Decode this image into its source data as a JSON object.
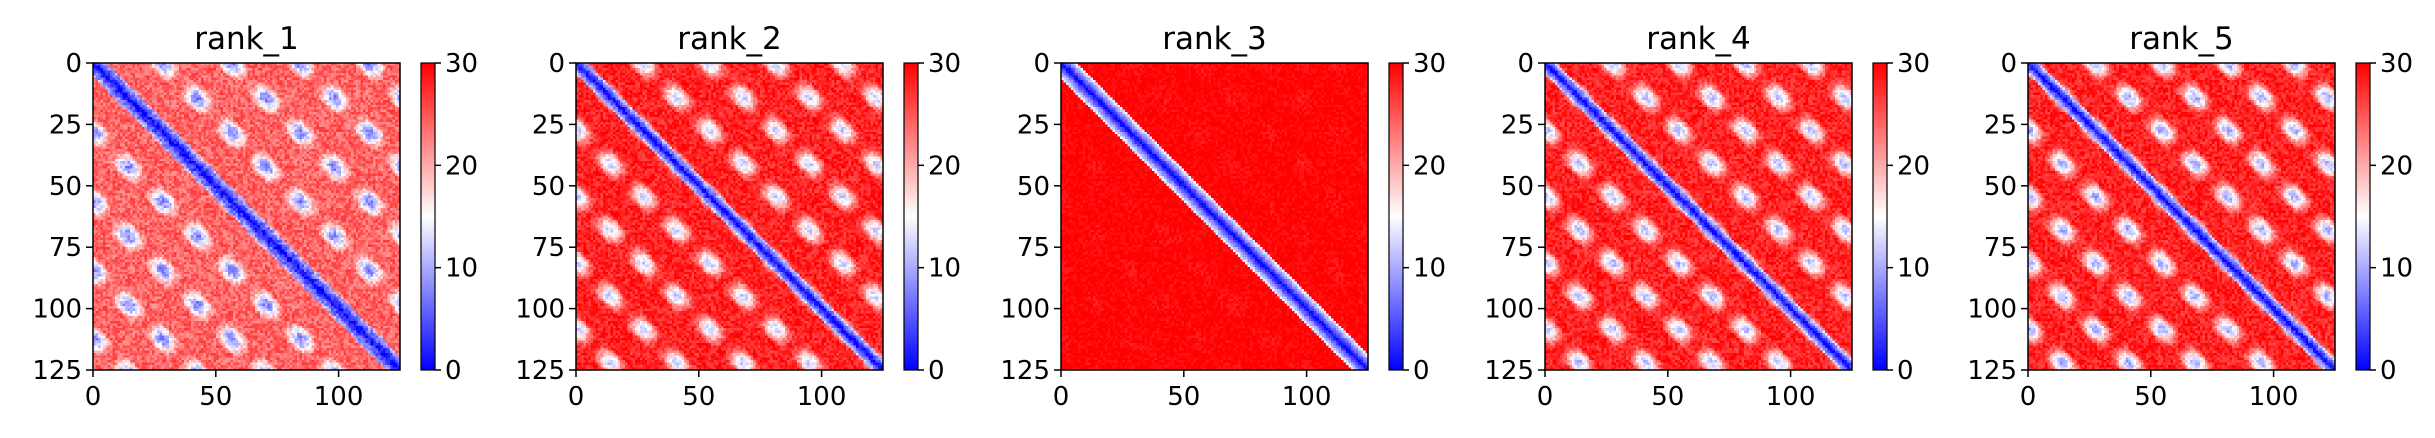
{
  "chart_data": [
    {
      "type": "heatmap",
      "title": "rank_1",
      "n": 125,
      "xticks": [
        0,
        50,
        100
      ],
      "yticks": [
        0,
        25,
        50,
        75,
        100,
        125
      ],
      "xlim": [
        0,
        125
      ],
      "ylim": [
        125,
        0
      ],
      "colorbar": {
        "vmin": 0,
        "vmax": 30,
        "ticks": [
          0,
          10,
          20,
          30
        ],
        "colormap": "bwr"
      },
      "diagonal_width": 6,
      "background_level": 22,
      "stripe_period": 28,
      "stripe_low": 8,
      "stripe_high": 25,
      "noise": 3
    },
    {
      "type": "heatmap",
      "title": "rank_2",
      "n": 125,
      "xticks": [
        0,
        50,
        100
      ],
      "yticks": [
        0,
        25,
        50,
        75,
        100,
        125
      ],
      "xlim": [
        0,
        125
      ],
      "ylim": [
        125,
        0
      ],
      "colorbar": {
        "vmin": 0,
        "vmax": 30,
        "ticks": [
          0,
          10,
          20,
          30
        ],
        "colormap": "bwr"
      },
      "diagonal_width": 5,
      "background_level": 26,
      "stripe_period": 27,
      "stripe_low": 12,
      "stripe_high": 28,
      "noise": 2.5
    },
    {
      "type": "heatmap",
      "title": "rank_3",
      "n": 125,
      "xticks": [
        0,
        50,
        100
      ],
      "yticks": [
        0,
        25,
        50,
        75,
        100,
        125
      ],
      "xlim": [
        0,
        125
      ],
      "ylim": [
        125,
        0
      ],
      "colorbar": {
        "vmin": 0,
        "vmax": 30,
        "ticks": [
          0,
          10,
          20,
          30
        ],
        "colormap": "bwr"
      },
      "diagonal_width": 7,
      "background_level": 30,
      "stripe_period": 28,
      "stripe_low": 29,
      "stripe_high": 30,
      "noise": 1.5
    },
    {
      "type": "heatmap",
      "title": "rank_4",
      "n": 125,
      "xticks": [
        0,
        50,
        100
      ],
      "yticks": [
        0,
        25,
        50,
        75,
        100,
        125
      ],
      "xlim": [
        0,
        125
      ],
      "ylim": [
        125,
        0
      ],
      "colorbar": {
        "vmin": 0,
        "vmax": 30,
        "ticks": [
          0,
          10,
          20,
          30
        ],
        "colormap": "bwr"
      },
      "diagonal_width": 5,
      "background_level": 27,
      "stripe_period": 27,
      "stripe_low": 11,
      "stripe_high": 28,
      "noise": 2.5
    },
    {
      "type": "heatmap",
      "title": "rank_5",
      "n": 125,
      "xticks": [
        0,
        50,
        100
      ],
      "yticks": [
        0,
        25,
        50,
        75,
        100,
        125
      ],
      "xlim": [
        0,
        125
      ],
      "ylim": [
        125,
        0
      ],
      "colorbar": {
        "vmin": 0,
        "vmax": 30,
        "ticks": [
          0,
          10,
          20,
          30
        ],
        "colormap": "bwr"
      },
      "diagonal_width": 5,
      "background_level": 27,
      "stripe_period": 27,
      "stripe_low": 10,
      "stripe_high": 28,
      "noise": 2.5
    }
  ]
}
